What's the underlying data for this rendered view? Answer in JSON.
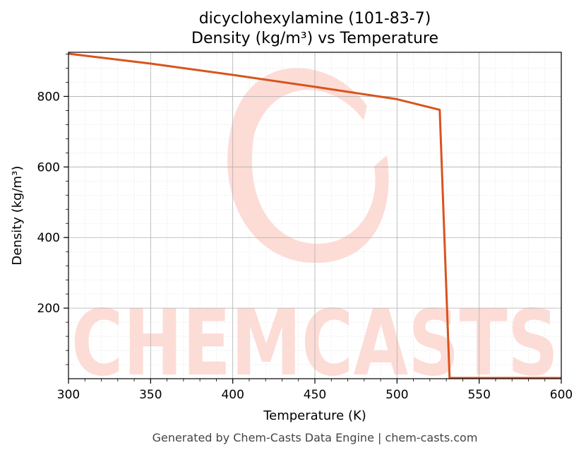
{
  "chart_data": {
    "type": "line",
    "title": "dicyclohexylamine (101-83-7)",
    "subtitle": "Density (kg/m³) vs Temperature",
    "xlabel": "Temperature (K)",
    "ylabel": "Density (kg/m³)",
    "xlim": [
      300,
      600
    ],
    "ylim": [
      0,
      925
    ],
    "x_ticks": [
      300,
      350,
      400,
      450,
      500,
      550,
      600
    ],
    "y_ticks": [
      200,
      400,
      600,
      800
    ],
    "grid": true,
    "series": [
      {
        "color": "#d9531e",
        "x": [
          300,
          350,
          400,
          450,
          500,
          526,
          532,
          600
        ],
        "y": [
          921,
          893,
          861,
          827,
          792,
          762,
          2,
          2
        ]
      }
    ]
  },
  "watermark": {
    "text": "CHEMCASTS",
    "color": "#fddcd6"
  },
  "footer": "Generated by Chem-Casts Data Engine | chem-casts.com"
}
